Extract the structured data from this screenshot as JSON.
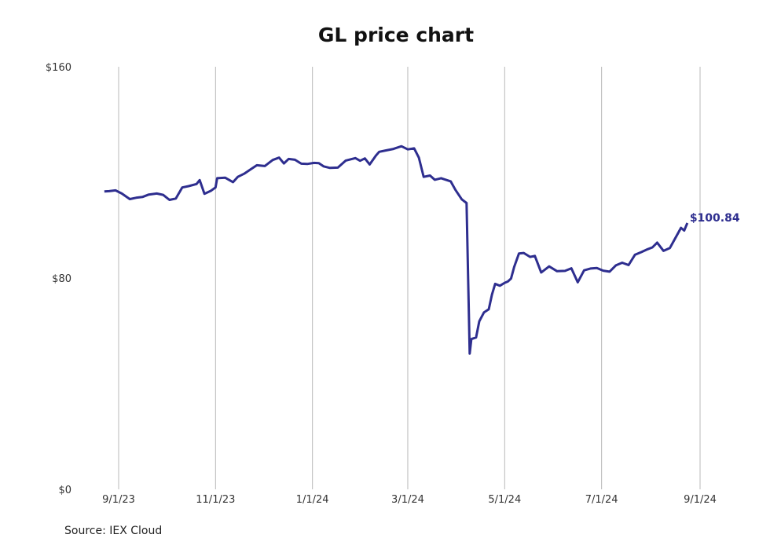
{
  "title": "GL price chart",
  "source": "Source: IEX Cloud",
  "chart_data": {
    "type": "line",
    "title": "GL price chart",
    "xlabel": "",
    "ylabel": "",
    "ylim": [
      0,
      160
    ],
    "yticks": [
      0,
      80,
      160
    ],
    "ytick_labels": [
      "$0",
      "$80",
      "$160"
    ],
    "xticks": [
      "2023-09-01",
      "2023-11-01",
      "2024-01-01",
      "2024-03-01",
      "2024-05-01",
      "2024-07-01",
      "2024-09-01"
    ],
    "xtick_labels": [
      "9/1/23",
      "11/1/23",
      "1/1/24",
      "3/1/24",
      "5/1/24",
      "7/1/24",
      "9/1/24"
    ],
    "grid": "vertical",
    "last_label": "$100.84",
    "line_color": "#2e2e8f",
    "series": [
      {
        "points": [
          [
            "2023-08-23",
            112.8
          ],
          [
            "2023-08-26",
            112.9
          ],
          [
            "2023-08-30",
            113.2
          ],
          [
            "2023-09-03",
            112.0
          ],
          [
            "2023-09-08",
            109.9
          ],
          [
            "2023-09-12",
            110.4
          ],
          [
            "2023-09-16",
            110.7
          ],
          [
            "2023-09-20",
            111.6
          ],
          [
            "2023-09-25",
            112.0
          ],
          [
            "2023-09-29",
            111.5
          ],
          [
            "2023-10-03",
            109.6
          ],
          [
            "2023-10-07",
            110.1
          ],
          [
            "2023-10-11",
            114.3
          ],
          [
            "2023-10-15",
            114.8
          ],
          [
            "2023-10-20",
            115.6
          ],
          [
            "2023-10-22",
            117.1
          ],
          [
            "2023-10-25",
            111.9
          ],
          [
            "2023-10-29",
            113.0
          ],
          [
            "2023-11-01",
            114.3
          ],
          [
            "2023-11-02",
            117.8
          ],
          [
            "2023-11-07",
            118.0
          ],
          [
            "2023-11-12",
            116.3
          ],
          [
            "2023-11-15",
            118.3
          ],
          [
            "2023-11-19",
            119.5
          ],
          [
            "2023-11-23",
            121.1
          ],
          [
            "2023-11-27",
            122.7
          ],
          [
            "2023-12-02",
            122.4
          ],
          [
            "2023-12-07",
            124.7
          ],
          [
            "2023-12-11",
            125.6
          ],
          [
            "2023-12-14",
            123.4
          ],
          [
            "2023-12-17",
            125.1
          ],
          [
            "2023-12-21",
            124.8
          ],
          [
            "2023-12-25",
            123.3
          ],
          [
            "2023-12-29",
            123.2
          ],
          [
            "2024-01-02",
            123.6
          ],
          [
            "2024-01-05",
            123.5
          ],
          [
            "2024-01-08",
            122.3
          ],
          [
            "2024-01-12",
            121.7
          ],
          [
            "2024-01-17",
            121.8
          ],
          [
            "2024-01-22",
            124.5
          ],
          [
            "2024-01-28",
            125.4
          ],
          [
            "2024-01-31",
            124.4
          ],
          [
            "2024-02-03",
            125.3
          ],
          [
            "2024-02-06",
            123.0
          ],
          [
            "2024-02-10",
            126.4
          ],
          [
            "2024-02-12",
            127.8
          ],
          [
            "2024-02-16",
            128.3
          ],
          [
            "2024-02-21",
            128.9
          ],
          [
            "2024-02-26",
            129.9
          ],
          [
            "2024-03-01",
            128.7
          ],
          [
            "2024-03-05",
            129.1
          ],
          [
            "2024-03-08",
            125.6
          ],
          [
            "2024-03-11",
            118.3
          ],
          [
            "2024-03-15",
            118.8
          ],
          [
            "2024-03-18",
            117.2
          ],
          [
            "2024-03-22",
            117.8
          ],
          [
            "2024-03-28",
            116.6
          ],
          [
            "2024-03-31",
            113.4
          ],
          [
            "2024-04-04",
            109.8
          ],
          [
            "2024-04-07",
            108.4
          ],
          [
            "2024-04-09",
            51.4
          ],
          [
            "2024-04-10",
            56.9
          ],
          [
            "2024-04-13",
            57.5
          ],
          [
            "2024-04-15",
            63.6
          ],
          [
            "2024-04-18",
            67.0
          ],
          [
            "2024-04-21",
            68.2
          ],
          [
            "2024-04-23",
            73.7
          ],
          [
            "2024-04-25",
            77.8
          ],
          [
            "2024-04-28",
            77.1
          ],
          [
            "2024-05-01",
            78.2
          ],
          [
            "2024-05-03",
            78.7
          ],
          [
            "2024-05-05",
            79.8
          ],
          [
            "2024-05-07",
            84.2
          ],
          [
            "2024-05-10",
            89.3
          ],
          [
            "2024-05-13",
            89.5
          ],
          [
            "2024-05-17",
            88.0
          ],
          [
            "2024-05-20",
            88.4
          ],
          [
            "2024-05-24",
            82.1
          ],
          [
            "2024-05-29",
            84.4
          ],
          [
            "2024-06-03",
            82.6
          ],
          [
            "2024-06-08",
            82.7
          ],
          [
            "2024-06-12",
            83.7
          ],
          [
            "2024-06-16",
            78.4
          ],
          [
            "2024-06-20",
            82.9
          ],
          [
            "2024-06-24",
            83.6
          ],
          [
            "2024-06-28",
            83.8
          ],
          [
            "2024-07-02",
            82.8
          ],
          [
            "2024-07-06",
            82.4
          ],
          [
            "2024-07-10",
            84.8
          ],
          [
            "2024-07-14",
            85.8
          ],
          [
            "2024-07-18",
            84.9
          ],
          [
            "2024-07-22",
            88.8
          ],
          [
            "2024-07-26",
            89.8
          ],
          [
            "2024-07-30",
            90.9
          ],
          [
            "2024-08-02",
            91.6
          ],
          [
            "2024-08-05",
            93.4
          ],
          [
            "2024-08-09",
            90.3
          ],
          [
            "2024-08-13",
            91.4
          ],
          [
            "2024-08-16",
            94.7
          ],
          [
            "2024-08-20",
            99.0
          ],
          [
            "2024-08-22",
            98.0
          ],
          [
            "2024-08-24",
            100.84
          ]
        ]
      }
    ]
  }
}
